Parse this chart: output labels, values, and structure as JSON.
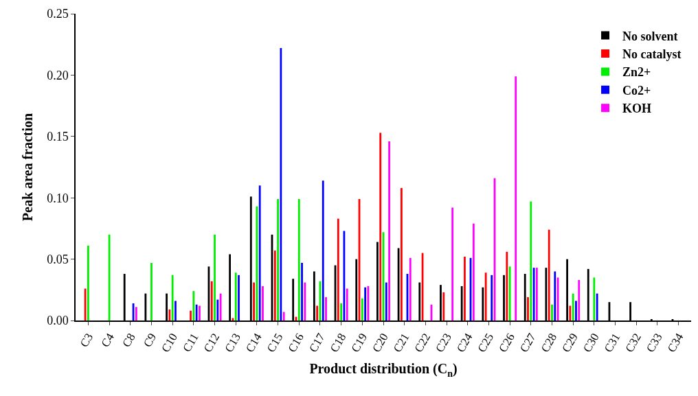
{
  "chart_data": {
    "type": "bar",
    "xlabel": "Product distribution (C$_{n}$)",
    "ylabel": "Peak area fraction",
    "categories": [
      "C3",
      "C4",
      "C8",
      "C9",
      "C10",
      "C11",
      "C12",
      "C13",
      "C14",
      "C15",
      "C16",
      "C17",
      "C18",
      "C19",
      "C20",
      "C21",
      "C22",
      "C23",
      "C24",
      "C25",
      "C26",
      "C27",
      "C28",
      "C29",
      "C30",
      "C31",
      "C32",
      "C33",
      "C34"
    ],
    "series": [
      {
        "name": "No solvent",
        "color": "#000000",
        "values": [
          null,
          null,
          0.038,
          0.022,
          0.022,
          null,
          0.044,
          0.054,
          0.101,
          0.07,
          0.034,
          0.04,
          0.045,
          0.05,
          0.064,
          0.059,
          0.031,
          0.029,
          0.028,
          0.027,
          0.037,
          0.038,
          0.043,
          0.05,
          0.042,
          0.015,
          0.015,
          0.001,
          0.001
        ]
      },
      {
        "name": "No catalyst",
        "color": "#ff0000",
        "values": [
          0.026,
          null,
          null,
          null,
          0.009,
          0.008,
          0.032,
          0.002,
          0.031,
          0.057,
          0.003,
          0.012,
          0.083,
          0.099,
          0.153,
          0.108,
          0.055,
          0.023,
          0.052,
          0.039,
          0.056,
          0.019,
          0.074,
          0.012,
          null,
          null,
          null,
          null,
          null
        ]
      },
      {
        "name": "Zn2+",
        "color": "#00ee00",
        "values": [
          0.061,
          0.07,
          null,
          0.047,
          0.037,
          0.024,
          0.07,
          0.039,
          0.093,
          0.099,
          0.099,
          0.032,
          0.014,
          0.018,
          0.072,
          null,
          null,
          null,
          null,
          null,
          0.044,
          0.097,
          0.013,
          0.022,
          0.035,
          null,
          null,
          null,
          null
        ]
      },
      {
        "name": "Co2+",
        "color": "#0000ff",
        "values": [
          null,
          null,
          0.014,
          null,
          0.016,
          0.013,
          0.017,
          0.037,
          0.11,
          0.222,
          0.047,
          0.114,
          0.073,
          0.027,
          0.031,
          0.038,
          null,
          null,
          0.051,
          0.037,
          null,
          0.043,
          0.04,
          0.016,
          0.022,
          null,
          null,
          null,
          null
        ]
      },
      {
        "name": "KOH",
        "color": "#ff00ff",
        "values": [
          null,
          null,
          0.011,
          null,
          null,
          0.012,
          0.022,
          null,
          0.028,
          0.007,
          0.031,
          0.019,
          0.026,
          0.028,
          0.146,
          0.051,
          0.013,
          0.092,
          0.079,
          0.116,
          0.199,
          0.043,
          0.035,
          0.033,
          null,
          null,
          null,
          null,
          null
        ]
      }
    ],
    "ylim": [
      0,
      0.25
    ],
    "yticks": [
      {
        "value": 0,
        "label": "0.00"
      },
      {
        "value": 0.05,
        "label": "0.05"
      },
      {
        "value": 0.1,
        "label": "0.10"
      },
      {
        "value": 0.15,
        "label": "0.15"
      },
      {
        "value": 0.2,
        "label": "0.20"
      },
      {
        "value": 0.25,
        "label": "0.25"
      }
    ],
    "legend": "top right"
  }
}
